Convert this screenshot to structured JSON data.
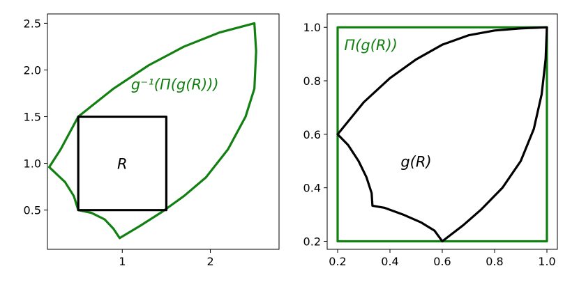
{
  "colors": {
    "green": "#118011",
    "black": "#000000"
  },
  "chart_data": [
    {
      "type": "line",
      "xlim": [
        0.15,
        2.78
      ],
      "ylim": [
        0.08,
        2.6
      ],
      "xticks": [
        1,
        2
      ],
      "xtick_labels": [
        "1",
        "2"
      ],
      "yticks": [
        0.5,
        1.0,
        1.5,
        2.0,
        2.5
      ],
      "ytick_labels": [
        "0.5",
        "1.0",
        "1.5",
        "2.0",
        "2.5"
      ],
      "grid": false,
      "series": [
        {
          "color": "#118011",
          "points": [
            [
              0.5,
              1.5
            ],
            [
              0.9,
              1.8
            ],
            [
              1.3,
              2.05
            ],
            [
              1.7,
              2.25
            ],
            [
              2.1,
              2.4
            ],
            [
              2.5,
              2.5
            ],
            [
              2.52,
              2.2
            ],
            [
              2.5,
              1.8
            ],
            [
              2.4,
              1.5
            ],
            [
              2.2,
              1.15
            ],
            [
              1.95,
              0.85
            ],
            [
              1.7,
              0.65
            ],
            [
              1.45,
              0.48
            ],
            [
              1.2,
              0.33
            ],
            [
              0.97,
              0.2
            ],
            [
              0.9,
              0.3
            ],
            [
              0.8,
              0.4
            ],
            [
              0.65,
              0.47
            ],
            [
              0.5,
              0.5
            ],
            [
              0.45,
              0.65
            ],
            [
              0.35,
              0.8
            ],
            [
              0.17,
              0.96
            ],
            [
              0.3,
              1.15
            ],
            [
              0.5,
              1.5
            ]
          ]
        },
        {
          "color": "#000000",
          "points": [
            [
              0.5,
              0.5
            ],
            [
              1.5,
              0.5
            ],
            [
              1.5,
              1.5
            ],
            [
              0.5,
              1.5
            ],
            [
              0.5,
              0.5
            ]
          ]
        }
      ],
      "annotations": [
        {
          "text": "g⁻¹(Π(g(R)))",
          "x": 1.1,
          "y": 1.85,
          "color": "#118011"
        },
        {
          "text": "R",
          "x": 1.0,
          "y": 1.0,
          "color": "#000000"
        }
      ]
    },
    {
      "type": "line",
      "xlim": [
        0.16,
        1.04
      ],
      "ylim": [
        0.17,
        1.05
      ],
      "xticks": [
        0.2,
        0.4,
        0.6,
        0.8,
        1.0
      ],
      "xtick_labels": [
        "0.2",
        "0.4",
        "0.6",
        "0.8",
        "1.0"
      ],
      "yticks": [
        0.2,
        0.4,
        0.6,
        0.8,
        1.0
      ],
      "ytick_labels": [
        "0.2",
        "0.4",
        "0.6",
        "0.8",
        "1.0"
      ],
      "grid": false,
      "series": [
        {
          "color": "#118011",
          "points": [
            [
              0.2,
              0.2
            ],
            [
              1.0,
              0.2
            ],
            [
              1.0,
              1.0
            ],
            [
              0.2,
              1.0
            ],
            [
              0.2,
              0.2
            ]
          ]
        },
        {
          "color": "#000000",
          "points": [
            [
              0.2,
              0.6
            ],
            [
              0.3,
              0.72
            ],
            [
              0.4,
              0.81
            ],
            [
              0.5,
              0.88
            ],
            [
              0.6,
              0.935
            ],
            [
              0.7,
              0.97
            ],
            [
              0.8,
              0.988
            ],
            [
              0.9,
              0.996
            ],
            [
              1.0,
              1.0
            ],
            [
              0.995,
              0.88
            ],
            [
              0.98,
              0.75
            ],
            [
              0.95,
              0.62
            ],
            [
              0.9,
              0.5
            ],
            [
              0.83,
              0.4
            ],
            [
              0.75,
              0.32
            ],
            [
              0.68,
              0.26
            ],
            [
              0.6,
              0.2
            ],
            [
              0.57,
              0.24
            ],
            [
              0.52,
              0.27
            ],
            [
              0.45,
              0.3
            ],
            [
              0.38,
              0.325
            ],
            [
              0.333,
              0.333
            ],
            [
              0.33,
              0.38
            ],
            [
              0.31,
              0.44
            ],
            [
              0.28,
              0.5
            ],
            [
              0.24,
              0.56
            ],
            [
              0.2,
              0.6
            ]
          ]
        }
      ],
      "annotations": [
        {
          "text": "Π(g(R))",
          "x": 0.225,
          "y": 0.935,
          "color": "#118011"
        },
        {
          "text": "g(R)",
          "x": 0.5,
          "y": 0.5,
          "color": "#000000"
        }
      ]
    }
  ]
}
